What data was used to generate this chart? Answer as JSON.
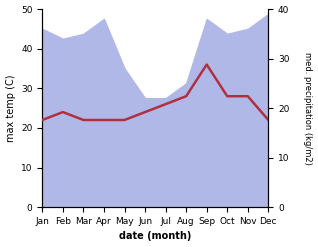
{
  "months": [
    "Jan",
    "Feb",
    "Mar",
    "Apr",
    "May",
    "Jun",
    "Jul",
    "Aug",
    "Sep",
    "Oct",
    "Nov",
    "Dec"
  ],
  "x": [
    0,
    1,
    2,
    3,
    4,
    5,
    6,
    7,
    8,
    9,
    10,
    11
  ],
  "precipitation": [
    36,
    34,
    35,
    38,
    28,
    22,
    22,
    25,
    38,
    35,
    36,
    39
  ],
  "temperature": [
    22,
    24,
    22,
    22,
    22,
    24,
    26,
    28,
    36,
    28,
    28,
    22
  ],
  "precip_color": "#b0b8e8",
  "temp_color": "#b03040",
  "ylabel_left": "max temp (C)",
  "ylabel_right": "med. precipitation (kg/m2)",
  "xlabel": "date (month)",
  "ylim_left": [
    0,
    50
  ],
  "ylim_right": [
    0,
    40
  ],
  "yticks_left": [
    0,
    10,
    20,
    30,
    40,
    50
  ],
  "yticks_right": [
    0,
    10,
    20,
    30,
    40
  ],
  "background_color": "#ffffff"
}
